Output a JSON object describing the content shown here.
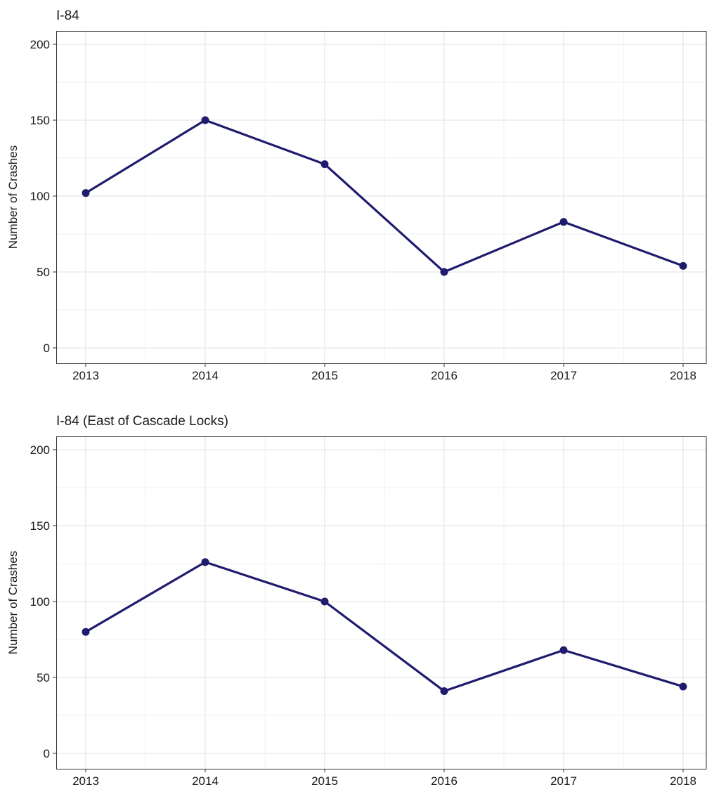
{
  "chart_data": [
    {
      "type": "line",
      "title": "I-84",
      "xlabel": "",
      "ylabel": "Number of Crashes",
      "x": [
        "2013",
        "2014",
        "2015",
        "2016",
        "2017",
        "2018"
      ],
      "values": [
        102,
        150,
        121,
        50,
        83,
        54
      ],
      "ylim": [
        0,
        200
      ],
      "yticks": [
        0,
        50,
        100,
        150,
        200
      ],
      "grid": true,
      "color": "#1f1c6e"
    },
    {
      "type": "line",
      "title": "I-84 (East of Cascade Locks)",
      "xlabel": "",
      "ylabel": "Number of Crashes",
      "x": [
        "2013",
        "2014",
        "2015",
        "2016",
        "2017",
        "2018"
      ],
      "values": [
        80,
        126,
        100,
        41,
        68,
        44
      ],
      "ylim": [
        0,
        200
      ],
      "yticks": [
        0,
        50,
        100,
        150,
        200
      ],
      "grid": true,
      "color": "#1f1c6e"
    }
  ]
}
